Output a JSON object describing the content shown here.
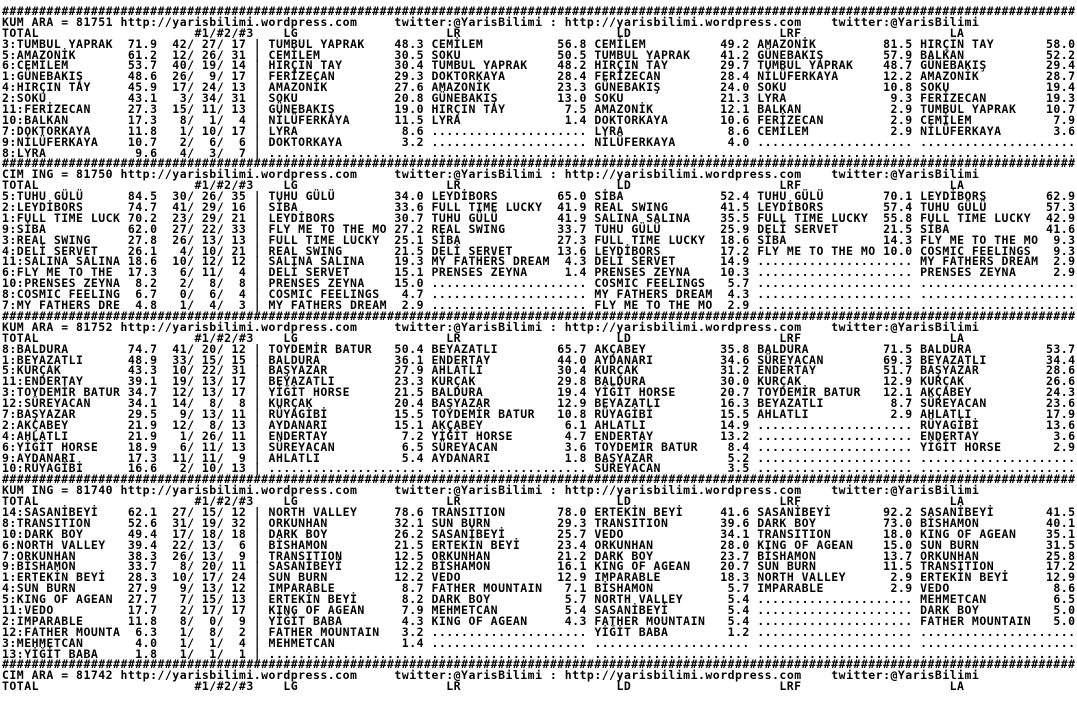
{
  "report": {
    "site_url": "http://yarisbilimi.wordpress.com",
    "twitter_handle": "twitter:@YarisBilimi",
    "columns": [
      "TOTAL",
      "#1/#2/#3",
      "LG",
      "LR",
      "LD",
      "LRF",
      "LA"
    ],
    "sections": [
      {
        "surface_code": "KUM ARA",
        "race_id": "81751",
        "rows": [
          [
            "3:TUMBUL YAPRAK",
            "71.9",
            "42",
            "27",
            "17",
            "TUMBUL YAPRAK",
            "48.3",
            "CEMİLEM",
            "56.8",
            "CEMİLEM",
            "49.2",
            "AMAZONİK",
            "81.5",
            "HIRÇIN TAY",
            "58.0"
          ],
          [
            "5:AMAZONİK",
            "61.2",
            "12",
            "26",
            "31",
            "CEMİLEM",
            "30.5",
            "SOKU",
            "50.5",
            "TUMBUL YAPRAK",
            "41.2",
            "GÜNEBAKIŞ",
            "57.9",
            "BALKAN",
            "52.2"
          ],
          [
            "6:CEMİLEM",
            "53.7",
            "40",
            "19",
            "14",
            "HIRÇIN TAY",
            "30.4",
            "TUMBUL YAPRAK",
            "48.2",
            "HIRÇIN TAY",
            "29.7",
            "TUMBUL YAPRAK",
            "48.7",
            "GÜNEBAKIŞ",
            "29.4"
          ],
          [
            "1:GÜNEBAKIŞ",
            "48.6",
            "26",
            "9",
            "17",
            "FERİZECAN",
            "29.3",
            "DOKTORKAYA",
            "28.4",
            "FERİZECAN",
            "28.4",
            "NİLÜFERKAYA",
            "12.2",
            "AMAZONİK",
            "28.7"
          ],
          [
            "4:HIRÇIN TAY",
            "45.9",
            "17",
            "24",
            "13",
            "AMAZONİK",
            "27.6",
            "AMAZONİK",
            "23.3",
            "GÜNEBAKIŞ",
            "24.0",
            "SOKU",
            "10.8",
            "SOKU",
            "19.4"
          ],
          [
            "2:SOKU",
            "43.1",
            "3",
            "34",
            "31",
            "SOKU",
            "20.8",
            "GÜNEBAKIŞ",
            "13.0",
            "SOKU",
            "21.3",
            "LYRA",
            "9.3",
            "FERİZECAN",
            "19.3"
          ],
          [
            "11:FERİZECAN",
            "27.3",
            "15",
            "11",
            "13",
            "GÜNEBAKIŞ",
            "19.0",
            "HIRÇIN TAY",
            "7.5",
            "AMAZONİK",
            "12.1",
            "BALKAN",
            "2.9",
            "TUMBUL YAPRAK",
            "10.7"
          ],
          [
            "10:BALKAN",
            "17.3",
            "8",
            "1",
            "4",
            "NİLÜFERKAYA",
            "11.5",
            "LYRA",
            "1.4",
            "DOKTORKAYA",
            "10.6",
            "FERİZECAN",
            "2.9",
            "CEMİLEM",
            "7.9"
          ],
          [
            "7:DOKTORKAYA",
            "11.8",
            "1",
            "10",
            "17",
            "LYRA",
            "8.6",
            null,
            null,
            "LYRA",
            "8.6",
            "CEMİLEM",
            "2.9",
            "NİLÜFERKAYA",
            "3.6"
          ],
          [
            "9:NİLÜFERKAYA",
            "10.7",
            "2",
            "6",
            "6",
            "DOKTORKAYA",
            "3.2",
            null,
            null,
            "NİLÜFERKAYA",
            "4.0",
            null,
            null,
            null,
            null
          ],
          [
            "8:LYRA",
            "9.6",
            "4",
            "3",
            "7",
            null,
            null,
            null,
            null,
            null,
            null,
            null,
            null,
            null,
            null
          ]
        ]
      },
      {
        "surface_code": "CIM ING",
        "race_id": "81750",
        "rows": [
          [
            "5:TUHU GÜLÜ",
            "84.5",
            "30",
            "26",
            "35",
            "TUHU GÜLÜ",
            "34.0",
            "LEYDİBORS",
            "65.0",
            "SİBA",
            "52.4",
            "TUHU GÜLÜ",
            "70.1",
            "LEYDİBORS",
            "62.9"
          ],
          [
            "2:LEYDİBORS",
            "74.7",
            "41",
            "29",
            "16",
            "SİBA",
            "33.6",
            "FULL TIME LUCKY",
            "41.9",
            "REAL SWING",
            "41.5",
            "LEYDİBORS",
            "57.4",
            "TUHU GÜLÜ",
            "57.3"
          ],
          [
            "1:FULL TIME LUCK",
            "70.2",
            "23",
            "29",
            "21",
            "LEYDİBORS",
            "30.7",
            "TUHU GÜLÜ",
            "41.9",
            "SALINA SALINA",
            "35.5",
            "FULL TIME LUCKY",
            "55.8",
            "FULL TIME LUCKY",
            "42.9"
          ],
          [
            "9:SİBA",
            "62.0",
            "27",
            "22",
            "33",
            "FLY ME TO THE MO",
            "27.2",
            "REAL SWING",
            "33.7",
            "TUHU GÜLÜ",
            "25.9",
            "DELİ SERVET",
            "21.5",
            "SİBA",
            "41.6"
          ],
          [
            "3:REAL SWING",
            "27.8",
            "26",
            "13",
            "13",
            "FULL TIME LUCKY",
            "25.1",
            "SİBA",
            "27.3",
            "FULL TIME LUCKY",
            "18.6",
            "SİBA",
            "14.3",
            "FLY ME TO THE MO",
            "9.3"
          ],
          [
            "4:DELİ SERVET",
            "26.1",
            "4",
            "10",
            "21",
            "REAL SWING",
            "21.5",
            "DELİ SERVET",
            "13.6",
            "LEYDİBORS",
            "17.2",
            "FLY ME TO THE MO",
            "10.0",
            "COSMIC FEELINGS",
            "9.3"
          ],
          [
            "11:SALINA SALINA",
            "18.6",
            "10",
            "12",
            "12",
            "SALINA SALINA",
            "19.3",
            "MY FATHERS DREAM",
            "4.3",
            "DELİ SERVET",
            "14.9",
            null,
            null,
            "MY FATHERS DREAM",
            "2.9"
          ],
          [
            "6:FLY ME TO THE",
            "17.3",
            "6",
            "11",
            "4",
            "DELİ SERVET",
            "15.1",
            "PRENSES ZEYNA",
            "1.4",
            "PRENSES ZEYNA",
            "10.3",
            null,
            null,
            "PRENSES ZEYNA",
            "2.9"
          ],
          [
            "10:PRENSES ZEYNA",
            "8.2",
            "2",
            "8",
            "8",
            "PRENSES ZEYNA",
            "15.0",
            null,
            null,
            "COSMIC FEELINGS",
            "5.7",
            null,
            null,
            null,
            null
          ],
          [
            "8:COSMIC FEELING",
            "6.7",
            "0",
            "6",
            "4",
            "COSMIC FEELINGS",
            "4.7",
            null,
            null,
            "MY FATHERS DREAM",
            "4.3",
            null,
            null,
            null,
            null
          ],
          [
            "7:MY FATHERS DRE",
            "4.8",
            "1",
            "4",
            "3",
            "MY FATHERS DREAM",
            "2.9",
            null,
            null,
            "FLY ME TO THE MO",
            "2.9",
            null,
            null,
            null,
            null
          ]
        ]
      },
      {
        "surface_code": "KUM ARA",
        "race_id": "81752",
        "rows": [
          [
            "8:BALDURA",
            "74.7",
            "41",
            "20",
            "12",
            "TOYDEMİR BATUR",
            "50.4",
            "BEYAZATLI",
            "65.7",
            "AKÇABEY",
            "35.8",
            "BALDURA",
            "71.5",
            "BALDURA",
            "53.7"
          ],
          [
            "1:BEYAZATLI",
            "48.9",
            "33",
            "15",
            "15",
            "BALDURA",
            "36.1",
            "ENDERTAY",
            "44.0",
            "AYDANARI",
            "34.6",
            "SÜREYACAN",
            "69.3",
            "BEYAZATLI",
            "34.4"
          ],
          [
            "5:KURÇAK",
            "43.3",
            "10",
            "22",
            "31",
            "BAŞYAZAR",
            "27.9",
            "AHLATLI",
            "30.4",
            "KURÇAK",
            "31.2",
            "ENDERTAY",
            "51.7",
            "BAŞYAZAR",
            "28.6"
          ],
          [
            "11:ENDERTAY",
            "39.1",
            "19",
            "13",
            "17",
            "BEYAZATLI",
            "23.3",
            "KURÇAK",
            "29.8",
            "BALDURA",
            "30.0",
            "KURÇAK",
            "12.9",
            "KURÇAK",
            "26.6"
          ],
          [
            "3:TOYDEMİR BATUR",
            "34.7",
            "12",
            "13",
            "17",
            "YİĞİT HORSE",
            "21.5",
            "BALDURA",
            "19.4",
            "YİĞİT HORSE",
            "20.7",
            "TOYDEMİR BATUR",
            "12.1",
            "AKÇABEY",
            "24.3"
          ],
          [
            "12:SÜREYACAN",
            "34.1",
            "14",
            "8",
            "8",
            "KURÇAK",
            "20.4",
            "BAŞYAZAR",
            "12.9",
            "BEYAZATLI",
            "16.3",
            "BEYAZATLI",
            "8.7",
            "SÜREYACAN",
            "23.6"
          ],
          [
            "7:BAŞYAZAR",
            "29.5",
            "9",
            "13",
            "11",
            "RÜYAGİBİ",
            "15.5",
            "TOYDEMİR BATUR",
            "10.8",
            "RÜYAGİBİ",
            "15.5",
            "AHLATLI",
            "2.9",
            "AHLATLI",
            "17.9"
          ],
          [
            "2:AKÇABEY",
            "21.9",
            "12",
            "8",
            "13",
            "AYDANARI",
            "15.1",
            "AKÇABEY",
            "6.1",
            "AHLATLI",
            "14.9",
            null,
            null,
            "RÜYAGİBİ",
            "13.6"
          ],
          [
            "4:AHLATLI",
            "21.9",
            "1",
            "26",
            "11",
            "ENDERTAY",
            "7.2",
            "YİĞİT HORSE",
            "4.7",
            "ENDERTAY",
            "13.2",
            null,
            null,
            "ENDERTAY",
            "3.6"
          ],
          [
            "6:YİĞİT HORSE",
            "18.9",
            "6",
            "11",
            "13",
            "SÜREYACAN",
            "6.5",
            "SÜREYACAN",
            "3.6",
            "TOYDEMİR BATUR",
            "8.4",
            null,
            null,
            "YİĞİT HORSE",
            "2.9"
          ],
          [
            "9:AYDANARI",
            "17.3",
            "11",
            "11",
            "9",
            "AHLATLI",
            "5.4",
            "AYDANARI",
            "1.8",
            "BAŞYAZAR",
            "5.2",
            null,
            null,
            null,
            null
          ],
          [
            "10:RÜYAGİBİ",
            "16.6",
            "2",
            "10",
            "13",
            null,
            null,
            null,
            null,
            "SÜREYACAN",
            "3.5",
            null,
            null,
            null,
            null
          ]
        ]
      },
      {
        "surface_code": "KUM ING",
        "race_id": "81740",
        "rows": [
          [
            "14:SASANİBEYİ",
            "62.1",
            "27",
            "15",
            "12",
            "NORTH VALLEY",
            "78.6",
            "TRANSITION",
            "78.0",
            "ERTEKİN BEYİ",
            "41.6",
            "SASANİBEYİ",
            "92.2",
            "SASANİBEYİ",
            "41.5"
          ],
          [
            "8:TRANSITION",
            "52.6",
            "31",
            "19",
            "32",
            "ORKUNHAN",
            "32.1",
            "SUN BURN",
            "29.3",
            "TRANSITION",
            "39.6",
            "DARK BOY",
            "73.0",
            "BİSHAMON",
            "40.1"
          ],
          [
            "10:DARK BOY",
            "49.4",
            "17",
            "18",
            "18",
            "DARK BOY",
            "26.2",
            "SASANİBEYİ",
            "25.7",
            "VEDO",
            "34.1",
            "TRANSITION",
            "18.0",
            "KING OF AGEAN",
            "35.1"
          ],
          [
            "6:NORTH VALLEY",
            "39.4",
            "22",
            "13",
            "6",
            "BİSHAMON",
            "21.5",
            "ERTEKİN BEYİ",
            "23.4",
            "ORKUNHAN",
            "28.0",
            "KING OF AGEAN",
            "15.0",
            "SUN BURN",
            "31.5"
          ],
          [
            "7:ORKUNHAN",
            "38.3",
            "26",
            "13",
            "9",
            "TRANSITION",
            "12.5",
            "ORKUNHAN",
            "21.2",
            "DARK BOY",
            "23.7",
            "BİSHAMON",
            "13.7",
            "ORKUNHAN",
            "25.8"
          ],
          [
            "9:BİSHAMON",
            "33.7",
            "8",
            "20",
            "11",
            "SASANİBEYİ",
            "12.2",
            "BİSHAMON",
            "16.1",
            "KING OF AGEAN",
            "20.7",
            "SUN BURN",
            "11.5",
            "TRANSITION",
            "17.2"
          ],
          [
            "1:ERTEKİN BEYİ",
            "28.3",
            "10",
            "17",
            "24",
            "SUN BURN",
            "12.2",
            "VEDO",
            "12.9",
            "IMPARABLE",
            "18.3",
            "NORTH VALLEY",
            "2.9",
            "ERTEKİN BEYİ",
            "12.9"
          ],
          [
            "4:SUN BURN",
            "27.9",
            "9",
            "13",
            "12",
            "IMPARABLE",
            "8.7",
            "FATHER MOUNTAIN",
            "7.1",
            "BİSHAMON",
            "5.7",
            "IMPARABLE",
            "2.9",
            "VEDO",
            "8.6"
          ],
          [
            "5:KING OF AGEAN",
            "27.7",
            "7",
            "15",
            "13",
            "ERTEKİN BEYİ",
            "8.2",
            "DARK BOY",
            "5.7",
            "NORTH VALLEY",
            "5.4",
            null,
            null,
            "MEHMETCAN",
            "6.5"
          ],
          [
            "11:VEDO",
            "17.7",
            "2",
            "17",
            "17",
            "KING OF AGEAN",
            "7.9",
            "MEHMETCAN",
            "5.4",
            "SASANİBEYİ",
            "5.4",
            null,
            null,
            "DARK BOY",
            "5.0"
          ],
          [
            "2:IMPARABLE",
            "11.8",
            "8",
            "0",
            "9",
            "YİĞİT BABA",
            "4.3",
            "KING OF AGEAN",
            "4.3",
            "FATHER MOUNTAIN",
            "5.4",
            null,
            null,
            "FATHER MOUNTAIN",
            "5.0"
          ],
          [
            "12:FATHER MOUNTA",
            "6.3",
            "1",
            "8",
            "2",
            "FATHER MOUNTAIN",
            "3.2",
            null,
            null,
            "YİĞİT BABA",
            "1.2",
            null,
            null,
            null,
            null
          ],
          [
            "3:MEHMETCAN",
            "4.0",
            "1",
            "1",
            "4",
            "MEHMETCAN",
            "1.4",
            null,
            null,
            null,
            null,
            null,
            null,
            null,
            null
          ],
          [
            "13:YİĞİT BABA",
            "1.8",
            "1",
            "1",
            "1",
            null,
            null,
            null,
            null,
            null,
            null,
            null,
            null,
            null,
            null
          ]
        ]
      },
      {
        "surface_code": "CIM ARA",
        "race_id": "81742",
        "rows": []
      }
    ]
  }
}
